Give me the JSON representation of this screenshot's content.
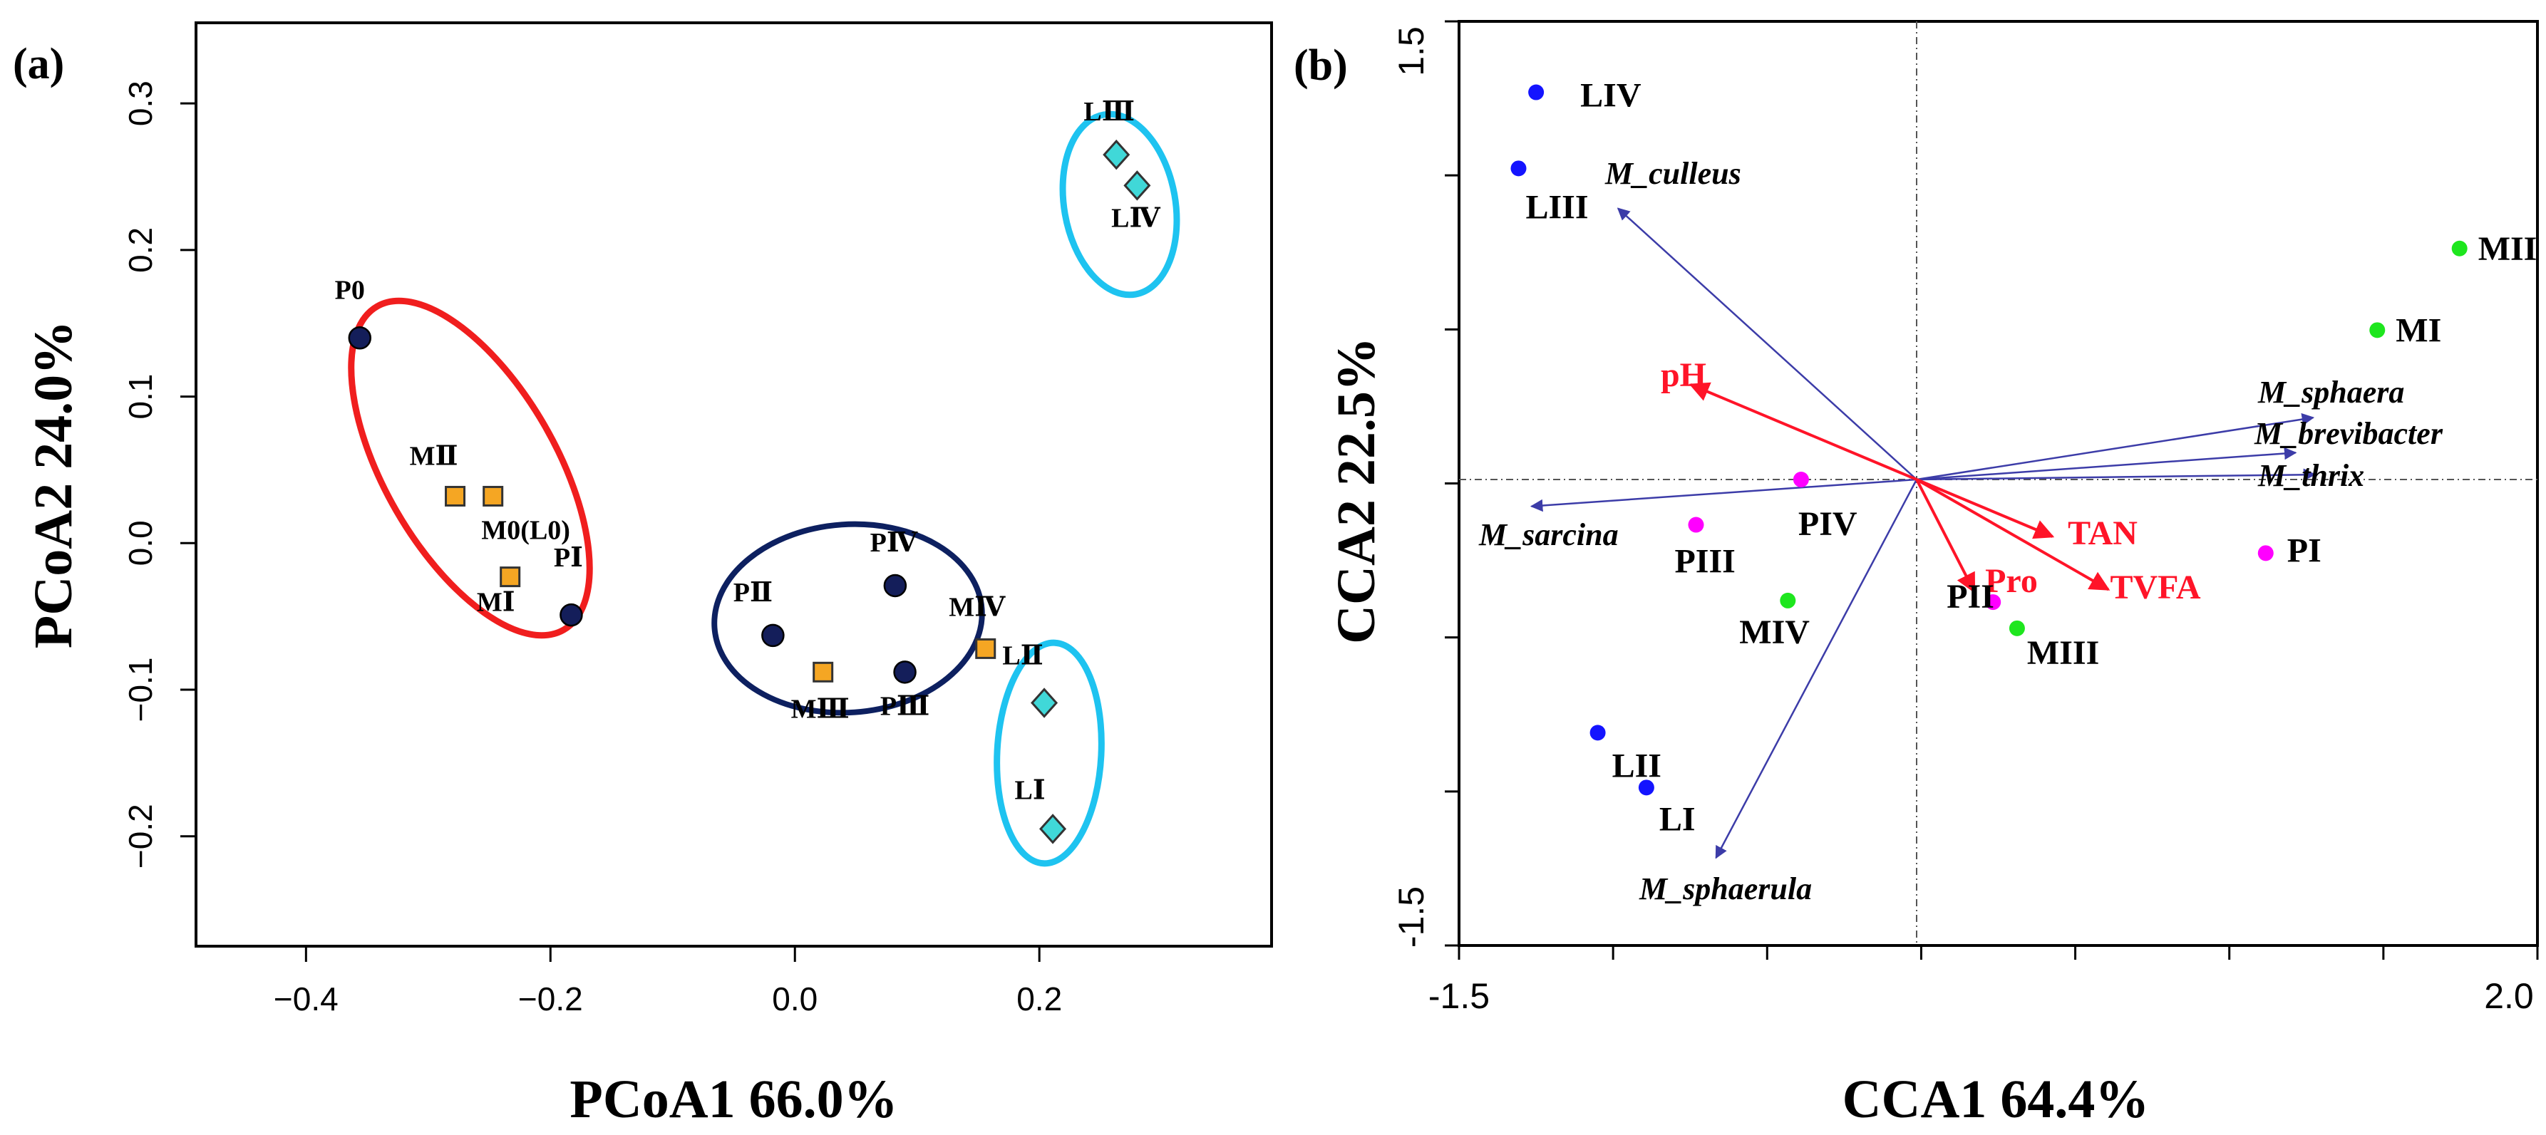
{
  "chart_data": [
    {
      "type": "scatter",
      "panel_label": "(a)",
      "xlabel": "PCoA1  66.0%",
      "ylabel": "PCoA2  24.0%",
      "xlim": [
        -0.49,
        0.39
      ],
      "ylim": [
        -0.275,
        0.355
      ],
      "xticks": [
        -0.4,
        -0.2,
        0.0,
        0.2
      ],
      "xtick_labels": [
        "−0.4",
        "−0.2",
        "0.0",
        "0.2"
      ],
      "yticks": [
        -0.2,
        -0.1,
        0.0,
        0.1,
        0.2,
        0.3
      ],
      "ytick_labels": [
        "−0.2",
        "−0.1",
        "0.0",
        "0.1",
        "0.2",
        "0.3"
      ],
      "colors": {
        "P": "#141e5a",
        "M": "#f5a623",
        "L": "#40d8d8",
        "group_red": "#f01e1e",
        "group_cyan": "#1ec3f0",
        "group_navy": "#0d2060"
      },
      "points": [
        {
          "label": "P0",
          "x": -0.356,
          "y": 0.14,
          "marker": "circle",
          "color": "#141e5a"
        },
        {
          "label": "PⅠ",
          "x": -0.183,
          "y": -0.049,
          "marker": "circle",
          "color": "#141e5a"
        },
        {
          "label": "PⅡ",
          "x": -0.018,
          "y": -0.063,
          "marker": "circle",
          "color": "#141e5a"
        },
        {
          "label": "PⅢ",
          "x": 0.09,
          "y": -0.088,
          "marker": "circle",
          "color": "#141e5a"
        },
        {
          "label": "PⅣ",
          "x": 0.082,
          "y": -0.029,
          "marker": "circle",
          "color": "#141e5a"
        },
        {
          "label": "MⅡ",
          "x": -0.278,
          "y": 0.032,
          "marker": "square",
          "color": "#f5a623"
        },
        {
          "label": "M0(L0)",
          "x": -0.247,
          "y": 0.032,
          "marker": "square",
          "color": "#f5a623"
        },
        {
          "label": "MⅠ",
          "x": -0.233,
          "y": -0.023,
          "marker": "square",
          "color": "#f5a623"
        },
        {
          "label": "MⅢ",
          "x": 0.023,
          "y": -0.088,
          "marker": "square",
          "color": "#f5a623"
        },
        {
          "label": "MⅣ",
          "x": 0.156,
          "y": -0.072,
          "marker": "square",
          "color": "#f5a623"
        },
        {
          "label": "LⅠ",
          "x": 0.211,
          "y": -0.195,
          "marker": "diamond",
          "color": "#40d8d8"
        },
        {
          "label": "LⅡ",
          "x": 0.204,
          "y": -0.109,
          "marker": "diamond",
          "color": "#40d8d8"
        },
        {
          "label": "LⅢ",
          "x": 0.263,
          "y": 0.265,
          "marker": "diamond",
          "color": "#40d8d8"
        },
        {
          "label": "LⅣ",
          "x": 0.28,
          "y": 0.244,
          "marker": "diamond",
          "color": "#40d8d8"
        }
      ]
    },
    {
      "type": "scatter",
      "panel_label": "(b)",
      "xlabel": "CCA1 64.4%",
      "ylabel": "CCA2 22.5%",
      "xlim": [
        -1.5,
        2.0
      ],
      "ylim": [
        -1.5,
        1.5
      ],
      "xtick_labels": [
        "-1.5",
        "2.0"
      ],
      "ytick_labels": [
        "-1.5",
        "1.5"
      ],
      "colors": {
        "L": "#1414ff",
        "P": "#ff00ff",
        "M": "#1ee61e",
        "env_arrow": "#ff1428",
        "species_arrow": "#3c3ca8",
        "env_text": "#ff1428"
      },
      "points": [
        {
          "label": "LIV",
          "x": -1.235,
          "y": 1.257,
          "color": "#1414ff"
        },
        {
          "label": "LIII",
          "x": -1.292,
          "y": 1.01,
          "color": "#1414ff"
        },
        {
          "label": "LII",
          "x": -1.035,
          "y": -0.822,
          "color": "#1414ff"
        },
        {
          "label": "LI",
          "x": -0.877,
          "y": -1.0,
          "color": "#1414ff"
        },
        {
          "label": "MII",
          "x": 1.762,
          "y": 0.75,
          "color": "#1ee61e"
        },
        {
          "label": "MI",
          "x": 1.495,
          "y": 0.485,
          "color": "#1ee61e"
        },
        {
          "label": "MIV",
          "x": -0.418,
          "y": -0.393,
          "color": "#1ee61e"
        },
        {
          "label": "MIII",
          "x": 0.326,
          "y": -0.483,
          "color": "#1ee61e"
        },
        {
          "label": "PIV",
          "x": -0.375,
          "y": 0.0,
          "color": "#ff00ff"
        },
        {
          "label": "PIII",
          "x": -0.716,
          "y": -0.147,
          "color": "#ff00ff"
        },
        {
          "label": "PII",
          "x": 0.248,
          "y": -0.398,
          "color": "#ff00ff"
        },
        {
          "label": "PI",
          "x": 1.133,
          "y": -0.239,
          "color": "#ff00ff"
        }
      ],
      "env_arrows": [
        {
          "label": "pH",
          "x": -0.733,
          "y": 0.308
        },
        {
          "label": "TAN",
          "x": 0.441,
          "y": -0.185
        },
        {
          "label": "TVFA",
          "x": 0.622,
          "y": -0.357
        },
        {
          "label": "Pro",
          "x": 0.187,
          "y": -0.364
        }
      ],
      "species_arrows": [
        {
          "label": "M_culleus",
          "x": -0.969,
          "y": 0.88
        },
        {
          "label": "M_sphaera",
          "x": 1.287,
          "y": 0.201
        },
        {
          "label": "M_brevibacter",
          "x": 1.23,
          "y": 0.087
        },
        {
          "label": "M_thrix",
          "x": 1.292,
          "y": 0.016
        },
        {
          "label": "M_sarcina",
          "x": -1.25,
          "y": -0.087
        },
        {
          "label": "M_sphaerula",
          "x": -0.651,
          "y": -1.228
        }
      ]
    }
  ]
}
